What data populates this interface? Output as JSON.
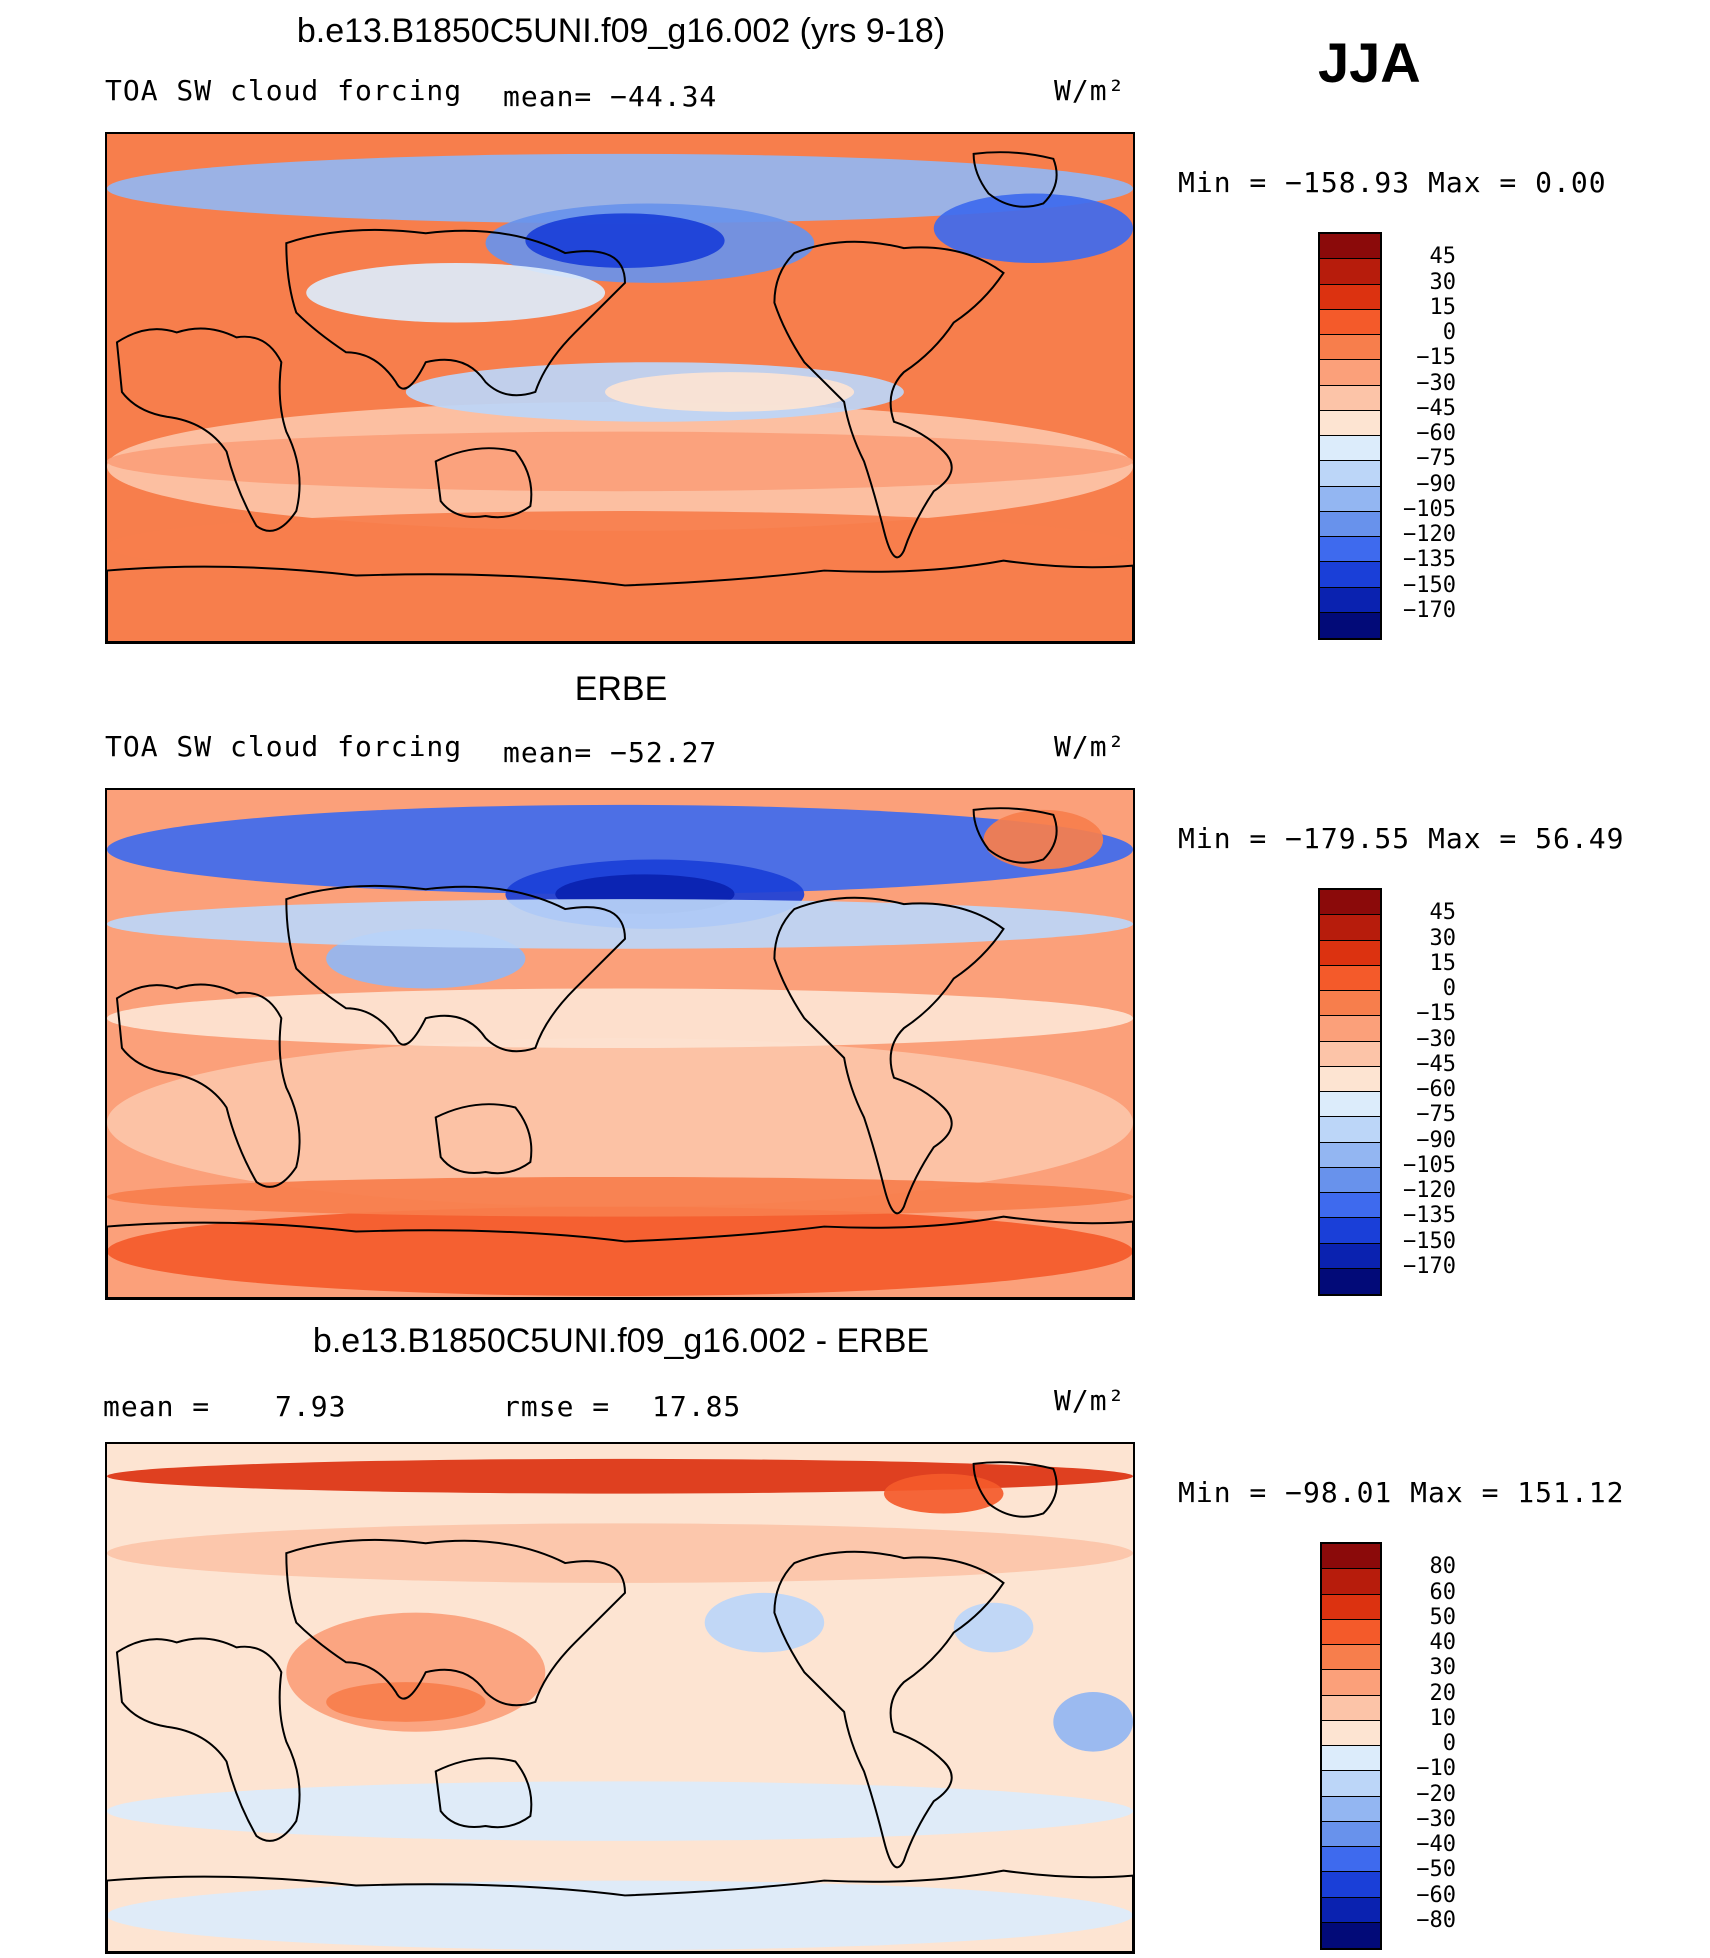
{
  "season": "JJA",
  "chart_data": [
    {
      "type": "heatmap",
      "title": "b.e13.B1850C5UNI.f09_g16.002 (yrs 9-18)",
      "subtitle_left": "TOA SW cloud forcing",
      "mean_text": "mean= −44.34",
      "units_text": "W/m²",
      "minmax_text": "Min = −158.93 Max =    0.00",
      "min": -158.93,
      "max": 0.0,
      "mean": -44.34,
      "levels": [
        "45",
        "30",
        "15",
        "0",
        "−15",
        "−30",
        "−45",
        "−60",
        "−75",
        "−90",
        "−105",
        "−120",
        "−135",
        "−150",
        "−170"
      ],
      "colors": [
        "#8b0a0a",
        "#b71c0c",
        "#dc3210",
        "#f45a2a",
        "#f77e4c",
        "#fba07a",
        "#fcc4a8",
        "#fde4d2",
        "#dcecfb",
        "#bcd6f8",
        "#93b6f2",
        "#6892ec",
        "#3e6aee",
        "#1a3fd8",
        "#0a22b0",
        "#020a78"
      ]
    },
    {
      "type": "heatmap",
      "title": "ERBE",
      "subtitle_left": "TOA SW cloud forcing",
      "mean_text": "mean= −52.27",
      "units_text": "W/m²",
      "minmax_text": "Min = −179.55 Max =   56.49",
      "min": -179.55,
      "max": 56.49,
      "mean": -52.27,
      "levels": [
        "45",
        "30",
        "15",
        "0",
        "−15",
        "−30",
        "−45",
        "−60",
        "−75",
        "−90",
        "−105",
        "−120",
        "−135",
        "−150",
        "−170"
      ],
      "colors": [
        "#8b0a0a",
        "#b71c0c",
        "#dc3210",
        "#f45a2a",
        "#f77e4c",
        "#fba07a",
        "#fcc4a8",
        "#fde4d2",
        "#dcecfb",
        "#bcd6f8",
        "#93b6f2",
        "#6892ec",
        "#3e6aee",
        "#1a3fd8",
        "#0a22b0",
        "#020a78"
      ]
    },
    {
      "type": "heatmap",
      "title": "b.e13.B1850C5UNI.f09_g16.002 - ERBE",
      "mean_label": "mean =",
      "mean_value": "7.93",
      "rmse_label": "rmse =",
      "rmse_value": "17.85",
      "units_text": "W/m²",
      "minmax_text": "Min = −98.01 Max = 151.12",
      "min": -98.01,
      "max": 151.12,
      "mean": 7.93,
      "rmse": 17.85,
      "levels": [
        "80",
        "60",
        "50",
        "40",
        "30",
        "20",
        "10",
        "0",
        "−10",
        "−20",
        "−30",
        "−40",
        "−50",
        "−60",
        "−80"
      ],
      "colors": [
        "#8b0a0a",
        "#b71c0c",
        "#dc3210",
        "#f45a2a",
        "#f77e4c",
        "#fba07a",
        "#fcc4a8",
        "#fde4d2",
        "#dcecfb",
        "#bcd6f8",
        "#93b6f2",
        "#6892ec",
        "#3e6aee",
        "#1a3fd8",
        "#0a22b0",
        "#020a78"
      ]
    }
  ]
}
